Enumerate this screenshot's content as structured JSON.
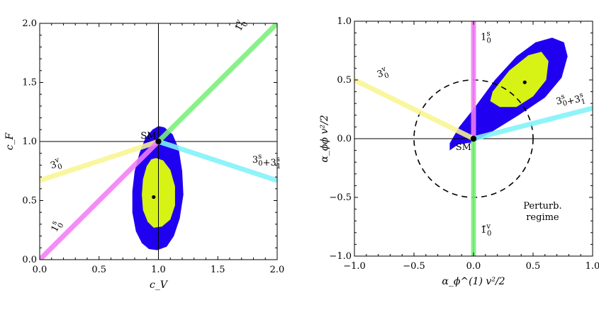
{
  "chart_data": [
    {
      "type": "scatter",
      "xlabel": "c_V",
      "ylabel": "c_F",
      "xlim": [
        0,
        2
      ],
      "ylim": [
        0,
        2
      ],
      "xticks": [
        "0.0",
        "0.5",
        "1.0",
        "1.5",
        "2.0"
      ],
      "yticks": [
        "0.0",
        "0.5",
        "1.0",
        "1.5",
        "2.0"
      ],
      "reference_lines": {
        "x": 1.0,
        "y": 1.0
      },
      "sm_label": "SM",
      "best_fit": {
        "x": 0.96,
        "y": 0.53
      },
      "sm_point": {
        "x": 1.0,
        "y": 1.0
      },
      "contour_outer": [
        [
          1.05,
          1.12
        ],
        [
          1.12,
          1.06
        ],
        [
          1.17,
          0.94
        ],
        [
          1.2,
          0.75
        ],
        [
          1.21,
          0.55
        ],
        [
          1.18,
          0.35
        ],
        [
          1.13,
          0.2
        ],
        [
          1.07,
          0.11
        ],
        [
          0.99,
          0.08
        ],
        [
          0.92,
          0.09
        ],
        [
          0.86,
          0.14
        ],
        [
          0.81,
          0.24
        ],
        [
          0.78,
          0.4
        ],
        [
          0.78,
          0.58
        ],
        [
          0.8,
          0.75
        ],
        [
          0.84,
          0.9
        ],
        [
          0.89,
          1.03
        ],
        [
          0.95,
          1.1
        ],
        [
          1.0,
          1.13
        ]
      ],
      "contour_inner": [
        [
          0.98,
          0.86
        ],
        [
          1.04,
          0.84
        ],
        [
          1.1,
          0.76
        ],
        [
          1.14,
          0.62
        ],
        [
          1.14,
          0.46
        ],
        [
          1.1,
          0.34
        ],
        [
          1.03,
          0.28
        ],
        [
          0.96,
          0.27
        ],
        [
          0.91,
          0.32
        ],
        [
          0.87,
          0.42
        ],
        [
          0.86,
          0.55
        ],
        [
          0.87,
          0.68
        ],
        [
          0.9,
          0.79
        ],
        [
          0.94,
          0.85
        ]
      ],
      "series": [
        {
          "name": "1̃_0^v",
          "color": "#77f077",
          "points": [
            [
              1,
              1
            ],
            [
              2,
              2
            ]
          ],
          "label_at": [
            1.69,
            1.93
          ],
          "label_rot": -62
        },
        {
          "name": "3_0^v",
          "color": "#f8f591",
          "points": [
            [
              0,
              0.67
            ],
            [
              1,
              1
            ]
          ],
          "label_at": [
            0.1,
            0.77
          ],
          "label_rot": -18
        },
        {
          "name": "3_0^s+3_1^s",
          "color": "#7ff2f8",
          "points": [
            [
              1,
              1
            ],
            [
              2,
              0.67
            ]
          ],
          "label_at": [
            1.79,
            0.82
          ],
          "label_rot": 0
        },
        {
          "name": "1_0^s",
          "color": "#f37cf7",
          "points": [
            [
              0,
              0
            ],
            [
              1,
              1
            ]
          ],
          "label_at": [
            0.14,
            0.23
          ],
          "label_rot": -62
        }
      ]
    },
    {
      "type": "scatter",
      "xlabel": "α_ϕ^(1) v²/2",
      "ylabel": "α_ϕϕ v²/2",
      "xlim": [
        -1,
        1
      ],
      "ylim": [
        -1,
        1
      ],
      "xticks": [
        "−1.0",
        "−0.5",
        "0.0",
        "0.5",
        "1.0"
      ],
      "yticks": [
        "−1.0",
        "−0.5",
        "0.0",
        "0.5",
        "1.0"
      ],
      "reference_lines": {
        "x": 0.0,
        "y": 0.0
      },
      "sm_label": "SM",
      "best_fit": {
        "x": 0.43,
        "y": 0.48
      },
      "sm_point": {
        "x": 0.0,
        "y": 0.0
      },
      "dashed_circle_radius": 0.5,
      "region_label": [
        "Perturb.",
        "regime"
      ],
      "contour_outer": [
        [
          -0.13,
          -0.05
        ],
        [
          -0.2,
          -0.1
        ],
        [
          -0.2,
          -0.04
        ],
        [
          -0.12,
          0.1
        ],
        [
          0.02,
          0.28
        ],
        [
          0.18,
          0.5
        ],
        [
          0.36,
          0.7
        ],
        [
          0.52,
          0.82
        ],
        [
          0.66,
          0.86
        ],
        [
          0.76,
          0.82
        ],
        [
          0.79,
          0.7
        ],
        [
          0.74,
          0.52
        ],
        [
          0.6,
          0.35
        ],
        [
          0.38,
          0.2
        ],
        [
          0.14,
          0.05
        ],
        [
          0.0,
          -0.03
        ]
      ],
      "contour_inner": [
        [
          0.16,
          0.4
        ],
        [
          0.3,
          0.58
        ],
        [
          0.46,
          0.71
        ],
        [
          0.57,
          0.74
        ],
        [
          0.63,
          0.66
        ],
        [
          0.61,
          0.5
        ],
        [
          0.5,
          0.36
        ],
        [
          0.36,
          0.27
        ],
        [
          0.22,
          0.27
        ],
        [
          0.14,
          0.32
        ]
      ],
      "series": [
        {
          "name": "1_0^s",
          "color": "#f37cf7",
          "points": [
            [
              0,
              0
            ],
            [
              0,
              1
            ]
          ],
          "label_at": [
            0.06,
            0.84
          ],
          "label_rot": 0
        },
        {
          "name": "3_0^v",
          "color": "#f8f591",
          "points": [
            [
              -1,
              0.5
            ],
            [
              0,
              0
            ]
          ],
          "label_at": [
            -0.8,
            0.52
          ],
          "label_rot": -18
        },
        {
          "name": "3_0^s+3_1^s",
          "color": "#7ff2f8",
          "points": [
            [
              0,
              0
            ],
            [
              1,
              0.26
            ]
          ],
          "label_at": [
            0.7,
            0.29
          ],
          "label_rot": -14
        },
        {
          "name": "1̃_0^v",
          "color": "#77f077",
          "points": [
            [
              0,
              -1
            ],
            [
              0,
              0
            ]
          ],
          "label_at": [
            0.06,
            -0.8
          ],
          "label_rot": 0
        }
      ]
    }
  ],
  "colors": {
    "outer_region": "#2000f0",
    "inner_region": "#d6f315",
    "axis": "#000000"
  }
}
